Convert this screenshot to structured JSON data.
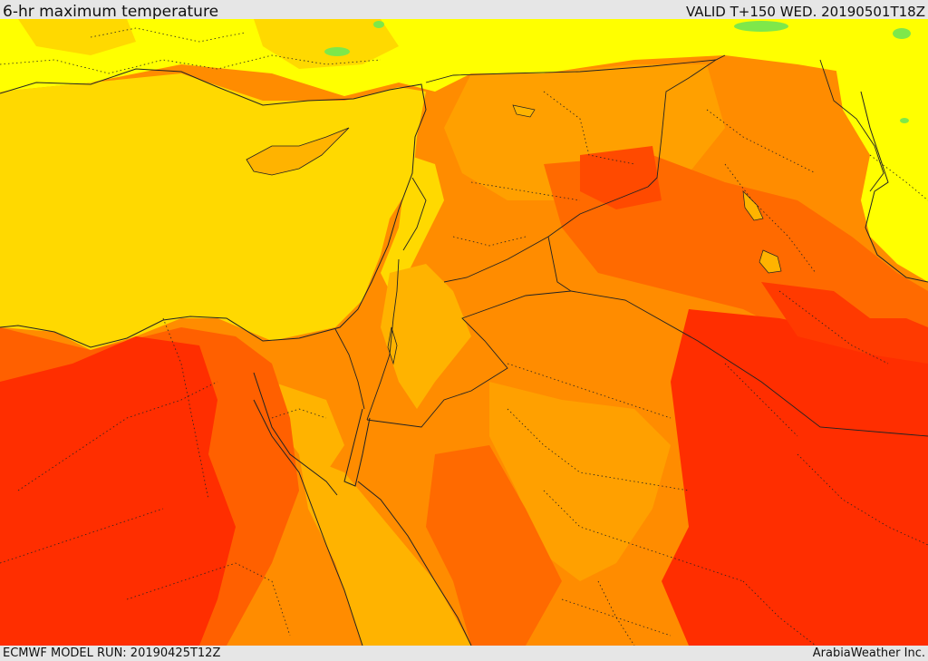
{
  "header": {
    "title": "6-hr maximum temperature",
    "valid": "VALID T+150 WED. 20190501T18Z"
  },
  "footer": {
    "model_run": "ECMWF MODEL RUN: 20190425T12Z",
    "credit": "ArabiaWeather Inc."
  },
  "palette": {
    "cool_green": "#7ee84a",
    "light_yellow": "#ffff00",
    "yellow": "#ffd900",
    "light_orange": "#ffb300",
    "orange": "#ff8c00",
    "dark_orange": "#ff6000",
    "red": "#ff2e00"
  }
}
